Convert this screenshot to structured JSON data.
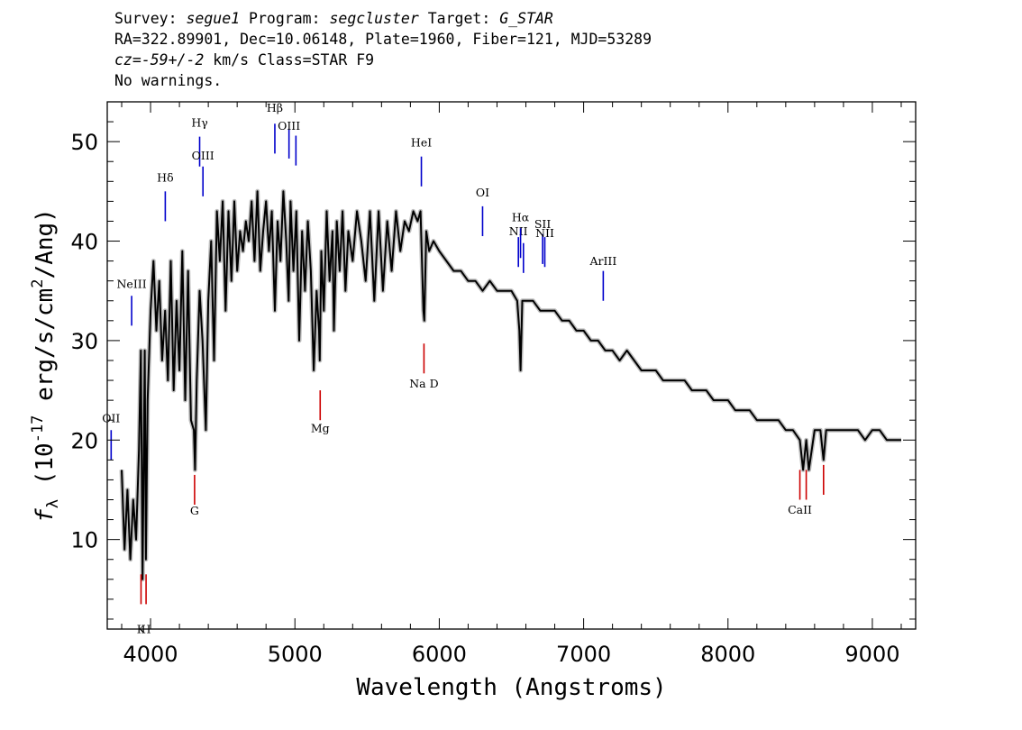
{
  "header": {
    "survey_label": "Survey:",
    "survey": "segue1",
    "program_label": "Program:",
    "program": "segcluster",
    "target_label": "Target:",
    "target": "G_STAR",
    "line2": "RA=322.89901, Dec=10.06148, Plate=1960, Fiber=121, MJD=53289",
    "cz_label": "cz=",
    "cz_value": "-59+/-2",
    "cz_rest": " km/s Class=STAR F9",
    "line4": "No warnings."
  },
  "chart_data": {
    "type": "line",
    "title": "",
    "xlabel": "Wavelength (Angstroms)",
    "ylabel": "f_λ (10^-17 erg/s/cm^2/Ang)",
    "xlim": [
      3700,
      9300
    ],
    "ylim": [
      1,
      54
    ],
    "xticks": [
      4000,
      5000,
      6000,
      7000,
      8000,
      9000
    ],
    "yticks": [
      10,
      20,
      30,
      40,
      50
    ],
    "x_minor_step": 200,
    "y_minor_step": 2,
    "grid": false,
    "series": [
      {
        "color": "#000000",
        "error_color": "#b8b8b8",
        "x": [
          3800,
          3820,
          3840,
          3860,
          3880,
          3900,
          3920,
          3933,
          3945,
          3960,
          3968,
          3980,
          4000,
          4020,
          4040,
          4060,
          4080,
          4101,
          4120,
          4140,
          4160,
          4180,
          4200,
          4220,
          4240,
          4260,
          4280,
          4300,
          4308,
          4320,
          4340,
          4360,
          4383,
          4400,
          4420,
          4440,
          4460,
          4480,
          4500,
          4520,
          4540,
          4560,
          4580,
          4600,
          4620,
          4640,
          4660,
          4680,
          4700,
          4720,
          4740,
          4760,
          4780,
          4800,
          4820,
          4840,
          4861,
          4880,
          4900,
          4920,
          4940,
          4957,
          4970,
          4990,
          5010,
          5030,
          5050,
          5070,
          5090,
          5110,
          5130,
          5150,
          5167,
          5172,
          5183,
          5200,
          5220,
          5240,
          5260,
          5270,
          5290,
          5310,
          5330,
          5350,
          5370,
          5400,
          5430,
          5460,
          5490,
          5520,
          5550,
          5580,
          5610,
          5640,
          5670,
          5700,
          5730,
          5760,
          5790,
          5820,
          5850,
          5870,
          5890,
          5896,
          5910,
          5930,
          5960,
          6000,
          6050,
          6100,
          6150,
          6200,
          6250,
          6300,
          6350,
          6400,
          6450,
          6500,
          6540,
          6555,
          6563,
          6575,
          6600,
          6650,
          6700,
          6750,
          6800,
          6850,
          6900,
          6950,
          7000,
          7050,
          7100,
          7150,
          7200,
          7250,
          7300,
          7350,
          7400,
          7450,
          7500,
          7550,
          7600,
          7650,
          7700,
          7750,
          7800,
          7850,
          7900,
          7950,
          8000,
          8050,
          8100,
          8150,
          8200,
          8250,
          8300,
          8350,
          8400,
          8450,
          8498,
          8520,
          8542,
          8560,
          8600,
          8640,
          8662,
          8680,
          8720,
          8760,
          8800,
          8850,
          8900,
          8950,
          9000,
          9050,
          9100,
          9150,
          9200
        ],
        "y": [
          17,
          9,
          15,
          8,
          14,
          10,
          19,
          29,
          6,
          29,
          8,
          24,
          33,
          38,
          31,
          36,
          28,
          33,
          26,
          38,
          25,
          34,
          27,
          39,
          24,
          37,
          22,
          21,
          17,
          26,
          35,
          30,
          21,
          34,
          40,
          28,
          43,
          38,
          44,
          33,
          43,
          36,
          44,
          37,
          41,
          39,
          42,
          40,
          44,
          38,
          45,
          37,
          41,
          44,
          39,
          43,
          33,
          42,
          38,
          45,
          40,
          34,
          44,
          37,
          43,
          30,
          41,
          35,
          42,
          37,
          27,
          35,
          31,
          28,
          39,
          33,
          43,
          36,
          41,
          31,
          42,
          37,
          43,
          35,
          41,
          38,
          43,
          40,
          36,
          43,
          34,
          43,
          35,
          42,
          37,
          43,
          39,
          42,
          41,
          43,
          42,
          43,
          33,
          32,
          41,
          39,
          40,
          39,
          38,
          37,
          37,
          36,
          36,
          35,
          36,
          35,
          35,
          35,
          34,
          31,
          27,
          34,
          34,
          34,
          33,
          33,
          33,
          32,
          32,
          31,
          31,
          30,
          30,
          29,
          29,
          28,
          29,
          28,
          27,
          27,
          27,
          26,
          26,
          26,
          26,
          25,
          25,
          25,
          24,
          24,
          24,
          23,
          23,
          23,
          22,
          22,
          22,
          22,
          21,
          21,
          20,
          17,
          20,
          17,
          21,
          21,
          18,
          21,
          21,
          21,
          21,
          21,
          21,
          20,
          21,
          21,
          20,
          20,
          20
        ]
      }
    ],
    "emission_lines": [
      {
        "label": "OII",
        "x": 3727,
        "y_bottom": 18,
        "y_top": 21,
        "label_y": 21.8
      },
      {
        "label": "NeIII",
        "x": 3869,
        "y_bottom": 31.5,
        "y_top": 34.5,
        "label_y": 35.3
      },
      {
        "label": "Hδ",
        "x": 4102,
        "y_bottom": 42,
        "y_top": 45,
        "label_y": 46
      },
      {
        "label": "Hγ",
        "x": 4340,
        "y_bottom": 47.5,
        "y_top": 50.5,
        "label_y": 51.5
      },
      {
        "label": "OIII",
        "x": 4363,
        "y_bottom": 44.5,
        "y_top": 47.5,
        "label_y": 48.2
      },
      {
        "label": "Hβ",
        "x": 4861,
        "y_bottom": 48.8,
        "y_top": 51.8,
        "label_y": 53
      },
      {
        "label": "OIII",
        "x": 4959,
        "y_bottom": 48.3,
        "y_top": 51.3,
        "label_y": 51.2
      },
      {
        "label": "",
        "x": 5007,
        "y_bottom": 47.6,
        "y_top": 50.6,
        "label_y": 0
      },
      {
        "label": "HeI",
        "x": 5876,
        "y_bottom": 45.5,
        "y_top": 48.5,
        "label_y": 49.5
      },
      {
        "label": "OI",
        "x": 6300,
        "y_bottom": 40.5,
        "y_top": 43.5,
        "label_y": 44.5
      },
      {
        "label": "NII",
        "x": 6548,
        "y_bottom": 37.4,
        "y_top": 40.4,
        "label_y": 40.6
      },
      {
        "label": "Hα",
        "x": 6563,
        "y_bottom": 38.3,
        "y_top": 41.3,
        "label_y": 42
      },
      {
        "label": "",
        "x": 6583,
        "y_bottom": 36.8,
        "y_top": 39.8,
        "label_y": 0
      },
      {
        "label": "SII",
        "x": 6716,
        "y_bottom": 37.7,
        "y_top": 40.7,
        "label_y": 41.3
      },
      {
        "label": "NII",
        "x": 6731,
        "y_bottom": 37.4,
        "y_top": 40.4,
        "label_y": 40.4
      },
      {
        "label": "ArIII",
        "x": 7136,
        "y_bottom": 34,
        "y_top": 37,
        "label_y": 37.6
      }
    ],
    "absorption_lines": [
      {
        "label": "K",
        "x": 3934,
        "y_bottom": 3.5,
        "y_top": 6.5,
        "label_y": 0.6
      },
      {
        "label": "H",
        "x": 3969,
        "y_bottom": 3.5,
        "y_top": 6.5,
        "label_y": 0.6
      },
      {
        "label": "G",
        "x": 4305,
        "y_bottom": 13.5,
        "y_top": 16.5,
        "label_y": 12.5
      },
      {
        "label": "Mg",
        "x": 5175,
        "y_bottom": 22,
        "y_top": 25,
        "label_y": 20.8
      },
      {
        "label": "Na D",
        "x": 5894,
        "y_bottom": 26.7,
        "y_top": 29.7,
        "label_y": 25.3
      },
      {
        "label": "CaII",
        "x": 8498,
        "y_bottom": 14,
        "y_top": 17,
        "label_y": 12.6
      },
      {
        "label": "",
        "x": 8542,
        "y_bottom": 14,
        "y_top": 17,
        "label_y": 0
      },
      {
        "label": "",
        "x": 8662,
        "y_bottom": 14.5,
        "y_top": 17.5,
        "label_y": 0
      }
    ],
    "colors": {
      "emission": "#0000cc",
      "absorption": "#cc0000",
      "spectrum": "#000000",
      "error": "#b8b8b8"
    }
  }
}
